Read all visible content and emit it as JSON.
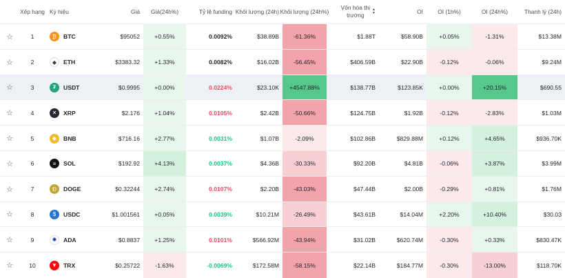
{
  "headers": {
    "rank": "Xếp hạng",
    "symbol": "Ký hiệu",
    "price": "Giá",
    "price_change": "Giá(24h%)",
    "funding": "Tỷ lệ funding",
    "volume": "Khối lượng (24h)",
    "volume_change": "Khối lượng (24h%)",
    "market_cap_line1": "Vốn hóa thị",
    "market_cap_line2": "trường",
    "oi": "OI",
    "oi_1h": "OI (1h%)",
    "oi_24h": "OI (24h%)",
    "liquidation": "Thanh lý (24h)"
  },
  "colors": {
    "green_light": "#e9f6ee",
    "green_mid": "#d4f1de",
    "green_strong": "#58c78b",
    "red_light": "#fbe9eb",
    "red_mid": "#f8cfd3",
    "red_strong": "#f3a3aa",
    "highlight_row": "#edf1f6"
  },
  "rows": [
    {
      "rank": "1",
      "symbol": "BTC",
      "icon": "btc-icon",
      "price": "$95052",
      "price_change": "+0.55%",
      "funding": "0.0092%",
      "volume": "$38.89B",
      "volume_change": "-61.36%",
      "market_cap": "$1.88T",
      "oi": "$58.90B",
      "oi_1h": "+0.05%",
      "oi_24h": "-1.31%",
      "liquidation": "$13.38M"
    },
    {
      "rank": "2",
      "symbol": "ETH",
      "icon": "eth-icon",
      "price": "$3383.32",
      "price_change": "+1.33%",
      "funding": "0.0082%",
      "volume": "$16.02B",
      "volume_change": "-56.45%",
      "market_cap": "$406.59B",
      "oi": "$22.90B",
      "oi_1h": "-0.12%",
      "oi_24h": "-0.06%",
      "liquidation": "$9.24M"
    },
    {
      "rank": "3",
      "symbol": "USDT",
      "icon": "usdt-icon",
      "price": "$0.9995",
      "price_change": "+0.00%",
      "funding": "0.0224%",
      "volume": "$23.10K",
      "volume_change": "+4547.88%",
      "market_cap": "$138.77B",
      "oi": "$123.85K",
      "oi_1h": "+0.00%",
      "oi_24h": "+20.15%",
      "liquidation": "$690.55"
    },
    {
      "rank": "4",
      "symbol": "XRP",
      "icon": "xrp-icon",
      "price": "$2.176",
      "price_change": "+1.04%",
      "funding": "0.0105%",
      "volume": "$2.42B",
      "volume_change": "-50.66%",
      "market_cap": "$124.75B",
      "oi": "$1.92B",
      "oi_1h": "-0.12%",
      "oi_24h": "-2.83%",
      "liquidation": "$1.03M"
    },
    {
      "rank": "5",
      "symbol": "BNB",
      "icon": "bnb-icon",
      "price": "$716.16",
      "price_change": "+2.77%",
      "funding": "0.0031%",
      "volume": "$1.07B",
      "volume_change": "-2.09%",
      "market_cap": "$102.86B",
      "oi": "$829.88M",
      "oi_1h": "+0.12%",
      "oi_24h": "+4.65%",
      "liquidation": "$936.70K"
    },
    {
      "rank": "6",
      "symbol": "SOL",
      "icon": "sol-icon",
      "price": "$192.92",
      "price_change": "+4.13%",
      "funding": "0.0037%",
      "volume": "$4.36B",
      "volume_change": "-30.33%",
      "market_cap": "$92.20B",
      "oi": "$4.81B",
      "oi_1h": "-0.06%",
      "oi_24h": "+3.87%",
      "liquidation": "$3.99M"
    },
    {
      "rank": "7",
      "symbol": "DOGE",
      "icon": "doge-icon",
      "price": "$0.32244",
      "price_change": "+2.74%",
      "funding": "0.0107%",
      "volume": "$2.20B",
      "volume_change": "-43.03%",
      "market_cap": "$47.44B",
      "oi": "$2.00B",
      "oi_1h": "-0.29%",
      "oi_24h": "+0.81%",
      "liquidation": "$1.76M"
    },
    {
      "rank": "8",
      "symbol": "USDC",
      "icon": "usdc-icon",
      "price": "$1.001561",
      "price_change": "+0.05%",
      "funding": "0.0039%",
      "volume": "$10.21M",
      "volume_change": "-26.49%",
      "market_cap": "$43.61B",
      "oi": "$14.04M",
      "oi_1h": "+2.20%",
      "oi_24h": "+10.40%",
      "liquidation": "$30.03"
    },
    {
      "rank": "9",
      "symbol": "ADA",
      "icon": "ada-icon",
      "price": "$0.8837",
      "price_change": "+1.25%",
      "funding": "0.0101%",
      "volume": "$566.92M",
      "volume_change": "-43.94%",
      "market_cap": "$31.02B",
      "oi": "$620.74M",
      "oi_1h": "-0.30%",
      "oi_24h": "+0.33%",
      "liquidation": "$830.47K"
    },
    {
      "rank": "10",
      "symbol": "TRX",
      "icon": "trx-icon",
      "price": "$0.25722",
      "price_change": "-1.63%",
      "funding": "-0.0069%",
      "volume": "$172.58M",
      "volume_change": "-58.15%",
      "market_cap": "$22.14B",
      "oi": "$184.77M",
      "oi_1h": "-0.30%",
      "oi_24h": "-13.00%",
      "liquidation": "$118.70K"
    }
  ]
}
